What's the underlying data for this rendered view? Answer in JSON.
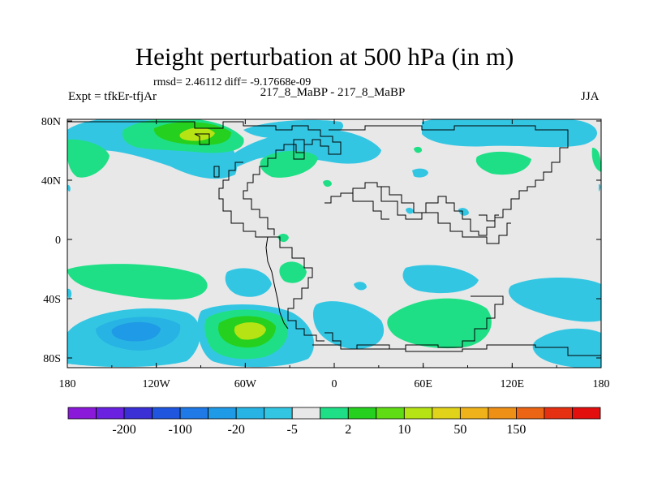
{
  "chart_data": {
    "type": "filled-contour-map",
    "title": "Height perturbation at 500 hPa (in m)",
    "stats_label": "rmsd= 2.46112 diff= -9.17668e-09",
    "left_label": "Expt = tfkEr-tfjAr",
    "center_label": "217_8_MaBP - 217_8_MaBP",
    "right_label": "JJA",
    "x_ticks": [
      "180",
      "120W",
      "60W",
      "0",
      "60E",
      "120E",
      "180"
    ],
    "y_ticks": [
      "80N",
      "40N",
      "0",
      "40S",
      "80S"
    ],
    "xlim": [
      -180,
      180
    ],
    "ylim": [
      -90,
      90
    ],
    "colorbar": {
      "colors": [
        "#8b19d9",
        "#6a21e0",
        "#3b2fd6",
        "#2055e0",
        "#1f79e6",
        "#1f9ae6",
        "#27b3e3",
        "#33c6e3",
        "#e8e8e8",
        "#1fdf86",
        "#26d01e",
        "#5fdc14",
        "#b5e314",
        "#e0d31a",
        "#f0b21a",
        "#ee8f16",
        "#eb6514",
        "#e63012",
        "#e30f0f"
      ],
      "labels": [
        "-200",
        "-100",
        "-20",
        "-5",
        "2",
        "10",
        "50",
        "150"
      ]
    }
  }
}
